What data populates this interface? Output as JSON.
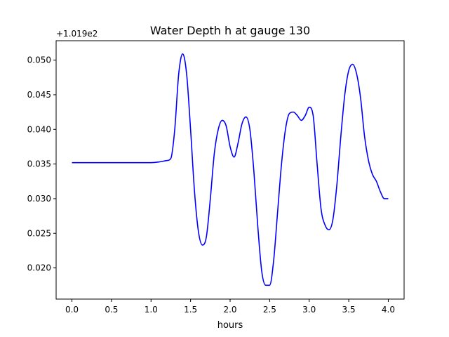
{
  "chart_data": {
    "type": "line",
    "title": "Water Depth h at gauge 130",
    "xlabel": "hours",
    "ylabel": "",
    "y_offset_label": "+1.019e2",
    "xlim": [
      -0.2,
      4.2
    ],
    "ylim": [
      0.0155,
      0.0528
    ],
    "x_ticks": [
      0.0,
      0.5,
      1.0,
      1.5,
      2.0,
      2.5,
      3.0,
      3.5,
      4.0
    ],
    "x_tick_labels": [
      "0.0",
      "0.5",
      "1.0",
      "1.5",
      "2.0",
      "2.5",
      "3.0",
      "3.5",
      "4.0"
    ],
    "y_ticks": [
      0.02,
      0.025,
      0.03,
      0.035,
      0.04,
      0.045,
      0.05
    ],
    "y_tick_labels": [
      "0.020",
      "0.025",
      "0.030",
      "0.035",
      "0.040",
      "0.045",
      "0.050"
    ],
    "grid": false,
    "series": [
      {
        "color": "#0000ff",
        "x": [
          0.0,
          0.5,
          0.9,
          1.0,
          1.1,
          1.2,
          1.25,
          1.3,
          1.35,
          1.4,
          1.45,
          1.5,
          1.55,
          1.6,
          1.65,
          1.7,
          1.75,
          1.8,
          1.85,
          1.9,
          1.95,
          2.0,
          2.05,
          2.1,
          2.15,
          2.2,
          2.25,
          2.3,
          2.35,
          2.4,
          2.45,
          2.5,
          2.55,
          2.6,
          2.65,
          2.7,
          2.75,
          2.8,
          2.85,
          2.9,
          2.95,
          3.0,
          3.05,
          3.1,
          3.15,
          3.2,
          3.25,
          3.3,
          3.35,
          3.4,
          3.45,
          3.5,
          3.55,
          3.6,
          3.65,
          3.7,
          3.75,
          3.8,
          3.85,
          3.9,
          3.95,
          4.0
        ],
        "y": [
          0.0352,
          0.0352,
          0.0352,
          0.0352,
          0.0353,
          0.0355,
          0.0358,
          0.04,
          0.048,
          0.0509,
          0.048,
          0.04,
          0.031,
          0.0252,
          0.0233,
          0.0245,
          0.03,
          0.0365,
          0.04,
          0.0413,
          0.0405,
          0.0375,
          0.036,
          0.038,
          0.0408,
          0.0418,
          0.04,
          0.034,
          0.026,
          0.0195,
          0.0175,
          0.0175,
          0.021,
          0.028,
          0.035,
          0.04,
          0.0423,
          0.0425,
          0.042,
          0.0413,
          0.042,
          0.0432,
          0.042,
          0.035,
          0.0285,
          0.0262,
          0.0255,
          0.027,
          0.032,
          0.039,
          0.045,
          0.0485,
          0.0494,
          0.048,
          0.0445,
          0.039,
          0.0355,
          0.0335,
          0.0325,
          0.031,
          0.03,
          0.03
        ]
      }
    ]
  }
}
